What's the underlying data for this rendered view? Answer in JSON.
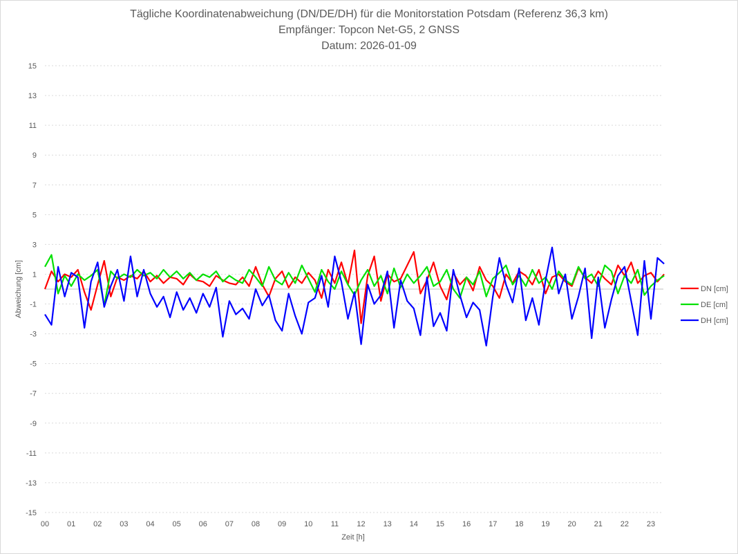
{
  "chart_data": {
    "type": "line",
    "title": "Tägliche Koordinatenabweichung (DN/DE/DH) für die Monitorstation Potsdam (Referenz 36,3 km)",
    "subtitle": "Empfänger: Topcon Net-G5, 2 GNSS",
    "date_line": "Datum: 2026-01-09",
    "xlabel": "Zeit [h]",
    "ylabel": "Abweichung [cm]",
    "xlim": [
      0,
      23.5
    ],
    "ylim": [
      -15,
      15
    ],
    "yticks": [
      15,
      13,
      11,
      9,
      7,
      5,
      3,
      1,
      -1,
      -3,
      -5,
      -7,
      -9,
      -11,
      -13,
      -15
    ],
    "xtick_labels": [
      "00",
      "01",
      "02",
      "03",
      "04",
      "05",
      "06",
      "07",
      "08",
      "09",
      "10",
      "11",
      "12",
      "13",
      "14",
      "15",
      "16",
      "17",
      "18",
      "19",
      "20",
      "21",
      "22",
      "23"
    ],
    "grid": "horizontal dotted",
    "legend_position": "right",
    "x": [
      0,
      0.25,
      0.5,
      0.75,
      1,
      1.25,
      1.5,
      1.75,
      2,
      2.25,
      2.5,
      2.75,
      3,
      3.25,
      3.5,
      3.75,
      4,
      4.25,
      4.5,
      4.75,
      5,
      5.25,
      5.5,
      5.75,
      6,
      6.25,
      6.5,
      6.75,
      7,
      7.25,
      7.5,
      7.75,
      8,
      8.25,
      8.5,
      8.75,
      9,
      9.25,
      9.5,
      9.75,
      10,
      10.25,
      10.5,
      10.75,
      11,
      11.25,
      11.5,
      11.75,
      12,
      12.25,
      12.5,
      12.75,
      13,
      13.25,
      13.5,
      13.75,
      14,
      14.25,
      14.5,
      14.75,
      15,
      15.25,
      15.5,
      15.75,
      16,
      16.25,
      16.5,
      16.75,
      17,
      17.25,
      17.5,
      17.75,
      18,
      18.25,
      18.5,
      18.75,
      19,
      19.25,
      19.5,
      19.75,
      20,
      20.25,
      20.5,
      20.75,
      21,
      21.25,
      21.5,
      21.75,
      22,
      22.25,
      22.5,
      22.75,
      23,
      23.25,
      23.5
    ],
    "series": [
      {
        "name": "DN [cm]",
        "color": "#ff0000",
        "values": [
          0.0,
          1.2,
          0.5,
          1.0,
          0.8,
          1.3,
          -0.2,
          -1.4,
          0.3,
          1.9,
          -0.5,
          0.8,
          0.6,
          0.9,
          0.7,
          1.2,
          0.5,
          0.9,
          0.4,
          0.8,
          0.7,
          0.3,
          1.0,
          0.6,
          0.5,
          0.2,
          0.9,
          0.6,
          0.4,
          0.3,
          0.8,
          0.2,
          1.5,
          0.3,
          -0.5,
          0.7,
          1.2,
          0.1,
          0.8,
          0.4,
          1.1,
          0.6,
          -0.6,
          1.3,
          0.4,
          1.8,
          0.3,
          2.6,
          -2.3,
          0.9,
          2.2,
          -0.8,
          1.0,
          0.5,
          0.7,
          1.6,
          2.5,
          -0.3,
          0.6,
          1.8,
          0.2,
          -0.7,
          1.1,
          0.3,
          0.8,
          -0.1,
          1.5,
          0.6,
          0.2,
          -0.6,
          1.0,
          0.4,
          1.2,
          0.9,
          0.3,
          1.3,
          -0.3,
          0.8,
          1.0,
          0.5,
          0.2,
          1.4,
          0.8,
          0.4,
          1.2,
          0.7,
          0.3,
          1.6,
          0.9,
          1.8,
          0.4,
          0.9,
          1.1,
          0.5,
          1.0
        ]
      },
      {
        "name": "DE [cm]",
        "color": "#00e000",
        "values": [
          1.5,
          2.3,
          -0.3,
          0.9,
          0.2,
          1.0,
          0.6,
          0.9,
          1.3,
          -1.1,
          1.2,
          0.7,
          1.0,
          0.8,
          1.3,
          0.9,
          1.1,
          0.7,
          1.3,
          0.8,
          1.2,
          0.7,
          1.1,
          0.6,
          1.0,
          0.8,
          1.2,
          0.5,
          0.9,
          0.6,
          0.4,
          1.3,
          0.8,
          0.2,
          1.5,
          0.6,
          0.3,
          1.1,
          0.4,
          1.6,
          0.7,
          -0.2,
          1.3,
          0.5,
          0.0,
          1.2,
          0.3,
          -0.4,
          0.6,
          1.3,
          0.2,
          0.9,
          -0.3,
          1.4,
          0.1,
          1.0,
          0.4,
          0.9,
          1.5,
          0.2,
          0.5,
          1.3,
          0.0,
          -0.6,
          0.8,
          0.3,
          1.2,
          -0.5,
          0.7,
          1.1,
          1.6,
          0.3,
          0.9,
          0.2,
          1.3,
          0.4,
          0.8,
          0.0,
          1.2,
          0.6,
          0.3,
          1.5,
          0.7,
          1.0,
          0.2,
          1.6,
          1.2,
          -0.3,
          0.9,
          0.4,
          1.3,
          -0.4,
          0.2,
          0.6,
          0.9
        ]
      },
      {
        "name": "DH [cm]",
        "color": "#0000ff",
        "values": [
          -1.7,
          -2.4,
          1.5,
          -0.5,
          1.1,
          0.8,
          -2.6,
          0.5,
          1.8,
          -1.2,
          0.2,
          1.3,
          -0.8,
          2.2,
          -0.5,
          1.3,
          -0.3,
          -1.2,
          -0.5,
          -1.9,
          -0.2,
          -1.4,
          -0.6,
          -1.6,
          -0.3,
          -1.2,
          0.1,
          -3.2,
          -0.8,
          -1.7,
          -1.3,
          -2.0,
          0.0,
          -1.1,
          -0.4,
          -2.1,
          -2.8,
          -0.3,
          -1.8,
          -3.0,
          -0.9,
          -0.6,
          0.9,
          -1.2,
          2.2,
          0.5,
          -2.0,
          -0.2,
          -3.7,
          0.3,
          -1.0,
          -0.4,
          1.2,
          -2.6,
          0.6,
          -0.8,
          -1.3,
          -3.1,
          0.8,
          -2.5,
          -1.6,
          -2.8,
          1.3,
          -0.4,
          -1.9,
          -0.9,
          -1.4,
          -3.8,
          -0.5,
          2.1,
          0.3,
          -0.9,
          1.4,
          -2.1,
          -0.6,
          -2.4,
          0.6,
          2.8,
          -0.3,
          1.0,
          -2.0,
          -0.5,
          1.4,
          -3.3,
          0.8,
          -2.6,
          -0.7,
          0.9,
          1.5,
          -0.8,
          -3.1,
          1.9,
          -2.0,
          2.1,
          1.7
        ]
      }
    ]
  }
}
